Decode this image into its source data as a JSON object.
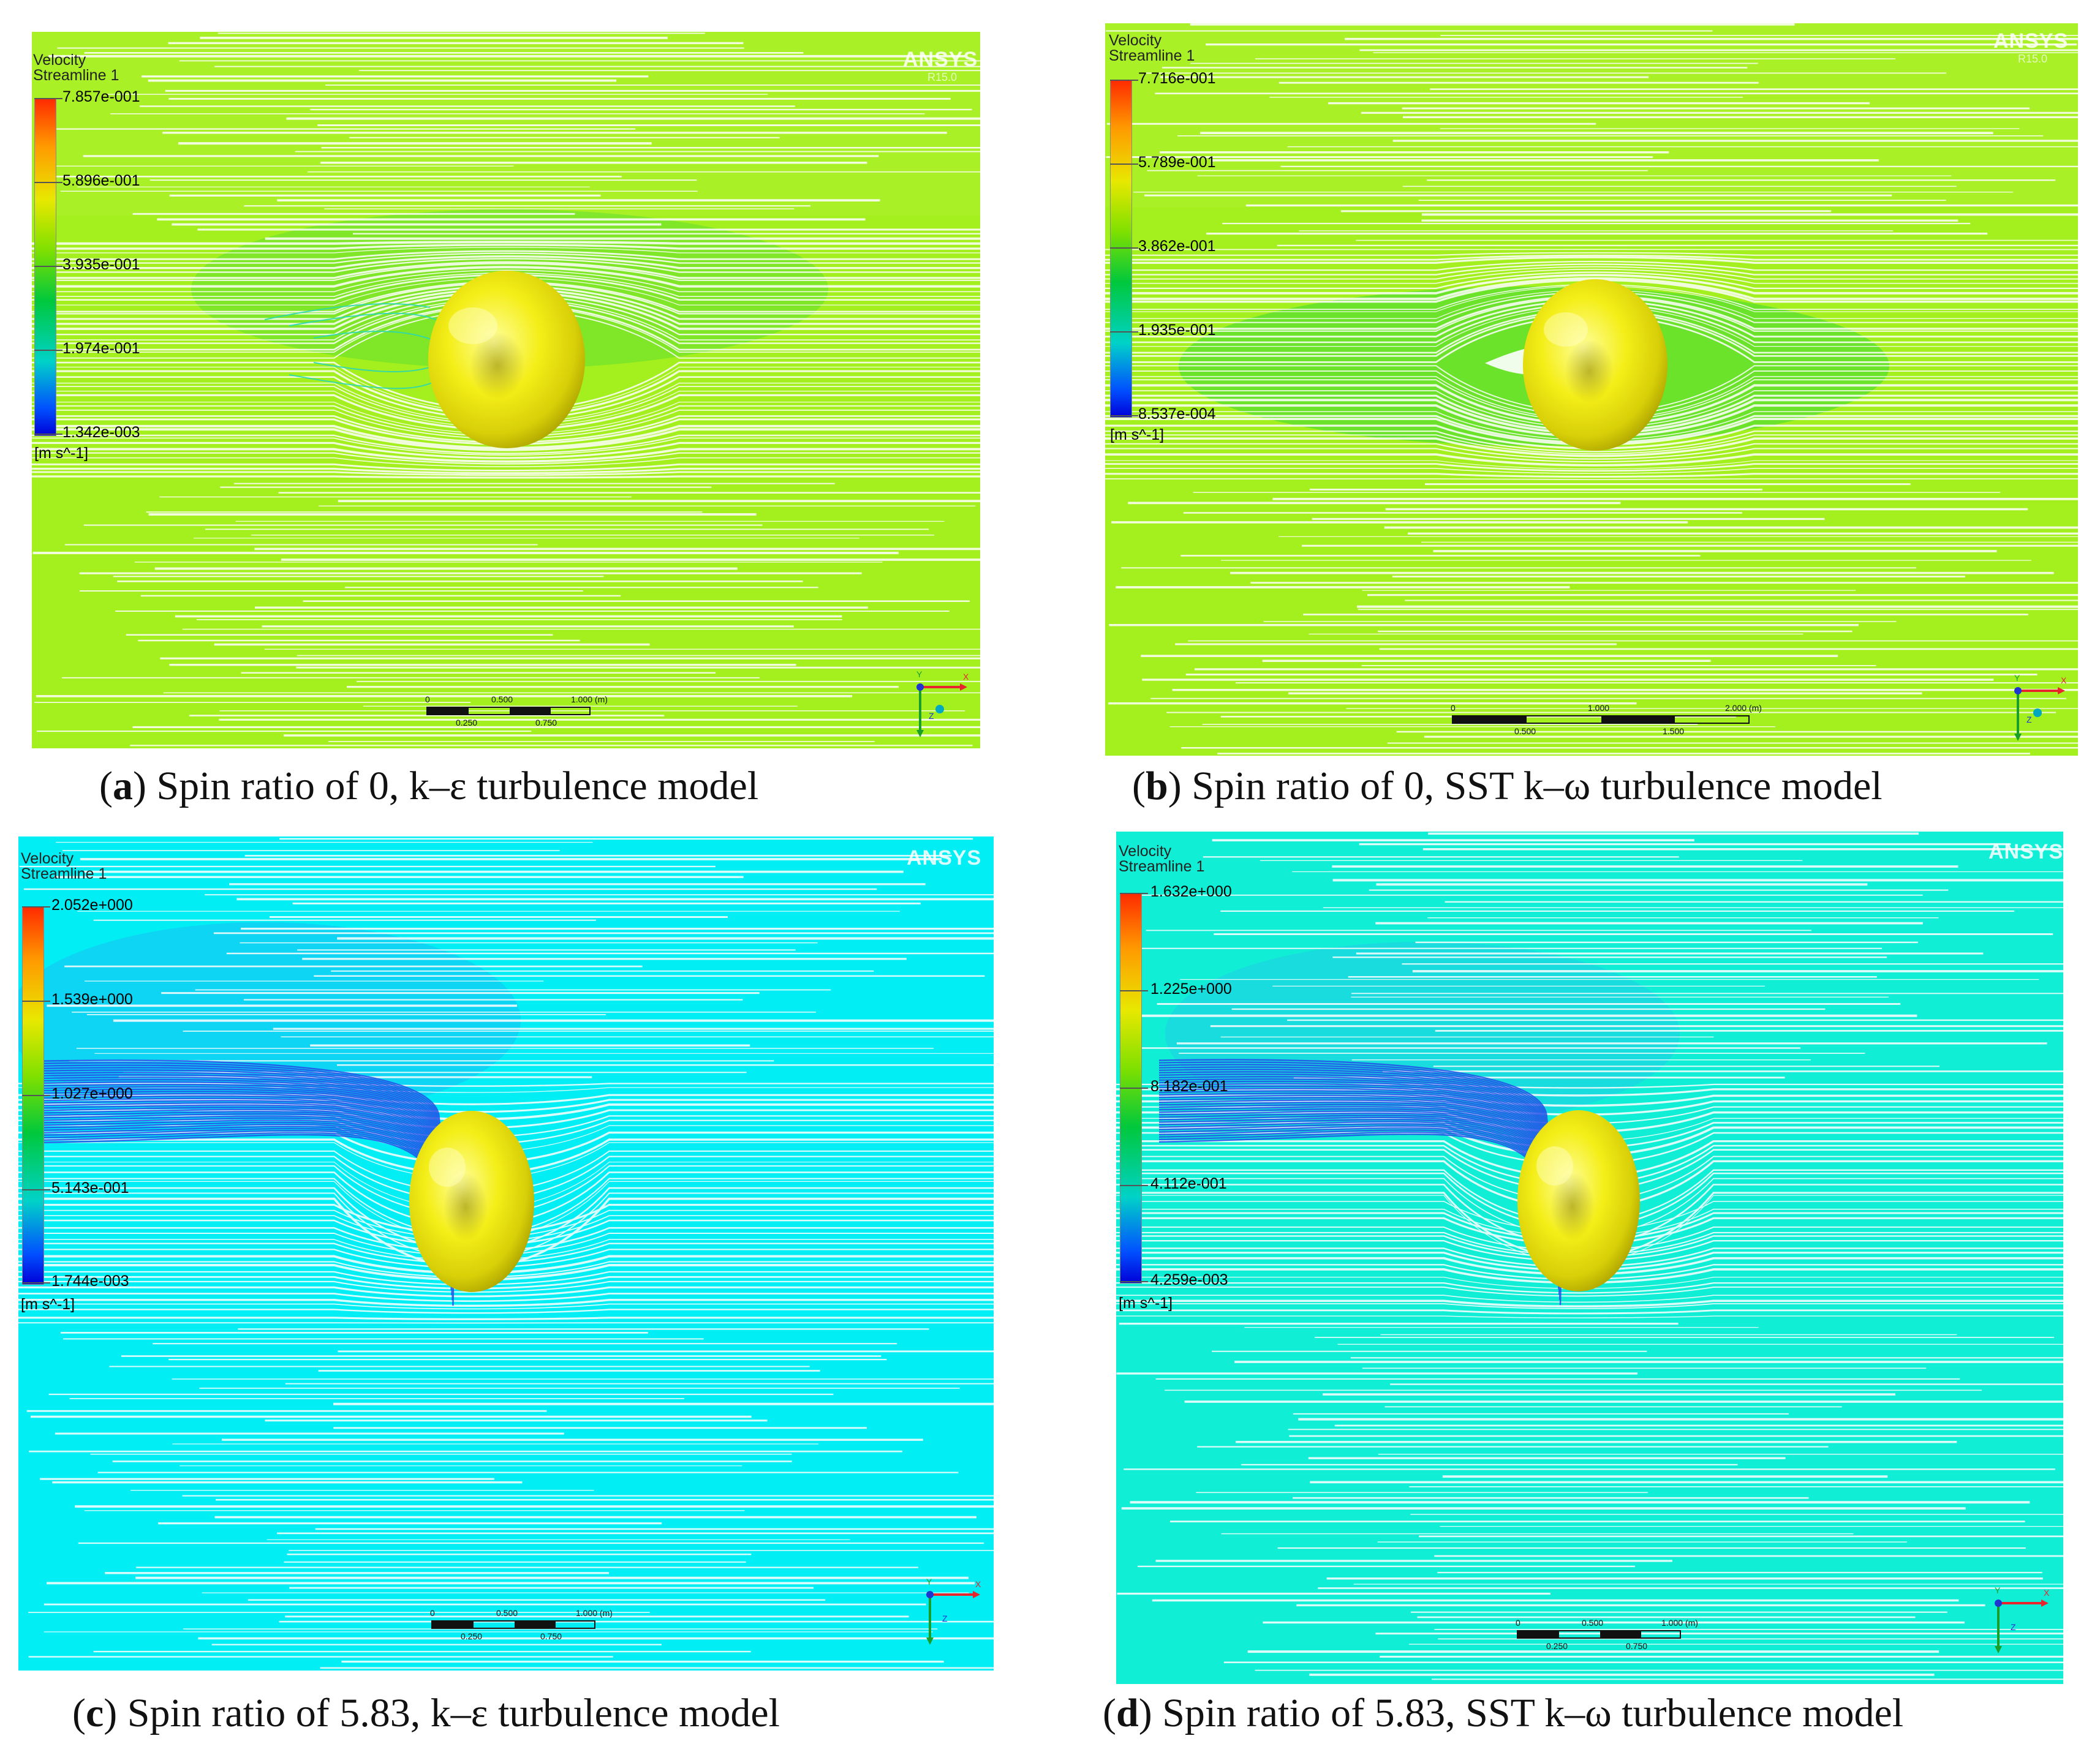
{
  "colors": {
    "panel_a_bg": "#a4f01e",
    "panel_b_bg": "#a4f01e",
    "panel_c_bg": "#00eef4",
    "panel_d_bg": "#10eed6",
    "sphere": "#f2ee10",
    "streamline": "#ffffff",
    "wake_blue": "#1f4fe6"
  },
  "panels": [
    {
      "id": "a",
      "legend_title": "Velocity",
      "legend_subtitle": "Streamline 1",
      "ticks": [
        "7.857e-001",
        "5.896e-001",
        "3.935e-001",
        "1.974e-001",
        "1.342e-003"
      ],
      "units": "[m s^-1]",
      "logo": "ANSYS",
      "logo_version": "R15.0",
      "scale_top": [
        "0",
        "0.500",
        "1.000 (m)"
      ],
      "scale_bottom": [
        "0.250",
        "0.750"
      ],
      "axis_labels": [
        "Y",
        "X",
        "Z"
      ],
      "caption_letter": "a",
      "caption_text": "Spin ratio of 0, k–ε turbulence model"
    },
    {
      "id": "b",
      "legend_title": "Velocity",
      "legend_subtitle": "Streamline 1",
      "ticks": [
        "7.716e-001",
        "5.789e-001",
        "3.862e-001",
        "1.935e-001",
        "8.537e-004"
      ],
      "units": "[m s^-1]",
      "logo": "ANSYS",
      "logo_version": "R15.0",
      "scale_top": [
        "0",
        "1.000",
        "2.000 (m)"
      ],
      "scale_bottom": [
        "0.500",
        "1.500"
      ],
      "axis_labels": [
        "Y",
        "X",
        "Z"
      ],
      "caption_letter": "b",
      "caption_text": "Spin ratio of 0, SST k–ω turbulence model"
    },
    {
      "id": "c",
      "legend_title": "Velocity",
      "legend_subtitle": "Streamline 1",
      "ticks": [
        "2.052e+000",
        "1.539e+000",
        "1.027e+000",
        "5.143e-001",
        "1.744e-003"
      ],
      "units": "[m s^-1]",
      "logo": "ANSYS",
      "logo_version": "",
      "scale_top": [
        "0",
        "0.500",
        "1.000 (m)"
      ],
      "scale_bottom": [
        "0.250",
        "0.750"
      ],
      "axis_labels": [
        "Y",
        "X",
        "Z"
      ],
      "caption_letter": "c",
      "caption_text": "Spin ratio of 5.83, k–ε turbulence model"
    },
    {
      "id": "d",
      "legend_title": "Velocity",
      "legend_subtitle": "Streamline 1",
      "ticks": [
        "1.632e+000",
        "1.225e+000",
        "8.182e-001",
        "4.112e-001",
        "4.259e-003"
      ],
      "units": "[m s^-1]",
      "logo": "ANSYS",
      "logo_version": "",
      "scale_top": [
        "0",
        "0.500",
        "1.000 (m)"
      ],
      "scale_bottom": [
        "0.250",
        "0.750"
      ],
      "axis_labels": [
        "Y",
        "X",
        "Z"
      ],
      "caption_letter": "d",
      "caption_text": "Spin ratio of 5.83, SST k–ω turbulence model"
    }
  ]
}
